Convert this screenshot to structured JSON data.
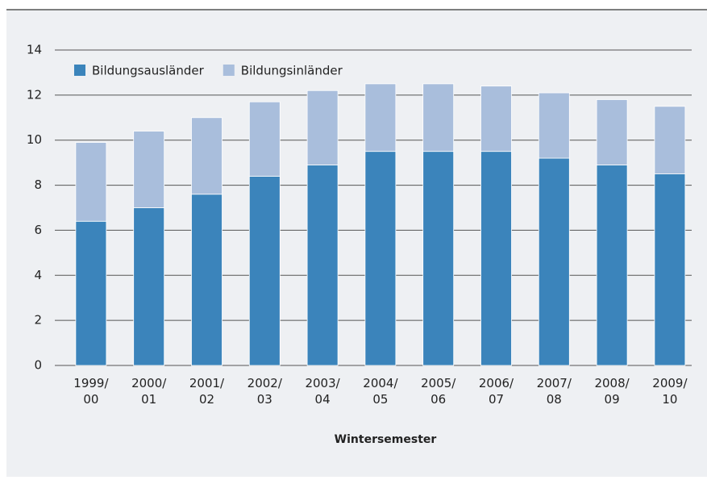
{
  "chart_data": {
    "type": "stacked_bar",
    "categories": [
      "1999/\n00",
      "2000/\n01",
      "2001/\n02",
      "2002/\n03",
      "2003/\n04",
      "2004/\n05",
      "2005/\n06",
      "2006/\n07",
      "2007/\n08",
      "2008/\n09",
      "2009/\n10"
    ],
    "series": [
      {
        "name": "Bildungsausländer",
        "color": "#3b84bb",
        "values": [
          6.4,
          7.0,
          7.6,
          8.4,
          8.9,
          9.5,
          9.5,
          9.5,
          9.2,
          8.9,
          8.5
        ]
      },
      {
        "name": "Bildungsinländer",
        "color": "#a9bedc",
        "values": [
          3.5,
          3.4,
          3.4,
          3.3,
          3.3,
          3.0,
          3.0,
          2.9,
          2.9,
          2.9,
          3.0
        ]
      }
    ],
    "xlabel": "Wintersemester",
    "ylim": [
      0,
      14
    ],
    "yticks": [
      0,
      2,
      4,
      6,
      8,
      10,
      12,
      14
    ],
    "grid": true,
    "legend": "top-left"
  }
}
